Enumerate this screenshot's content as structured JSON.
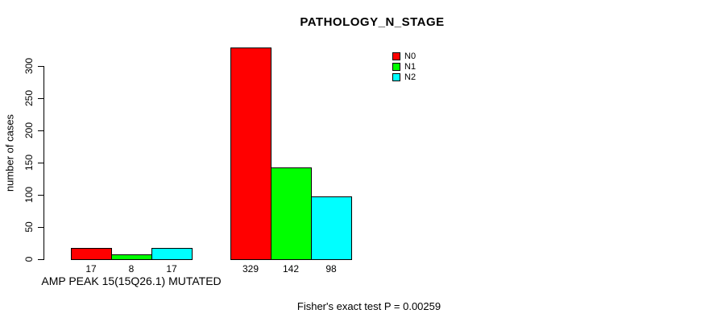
{
  "colors": {
    "N0": "#FF0000",
    "N1": "#00FF00",
    "N2": "#00FFFF",
    "axis": "#000000",
    "background": "#FFFFFF"
  },
  "chart_data": {
    "type": "bar",
    "title": "PATHOLOGY_N_STAGE",
    "ylabel": "number of cases",
    "xlabel": "",
    "categories": [
      "AMP PEAK 15(15Q26.1) MUTATED",
      ""
    ],
    "series": [
      {
        "name": "N0",
        "color": "#FF0000",
        "values": [
          17,
          329
        ]
      },
      {
        "name": "N1",
        "color": "#00FF00",
        "values": [
          8,
          142
        ]
      },
      {
        "name": "N2",
        "color": "#00FFFF",
        "values": [
          17,
          98
        ]
      }
    ],
    "yticks": [
      0,
      50,
      100,
      150,
      200,
      250,
      300
    ],
    "ylim": [
      0,
      340
    ],
    "grid": false,
    "legend_position": "top-right",
    "annotation": "Fisher's exact test P = 0.00259"
  }
}
